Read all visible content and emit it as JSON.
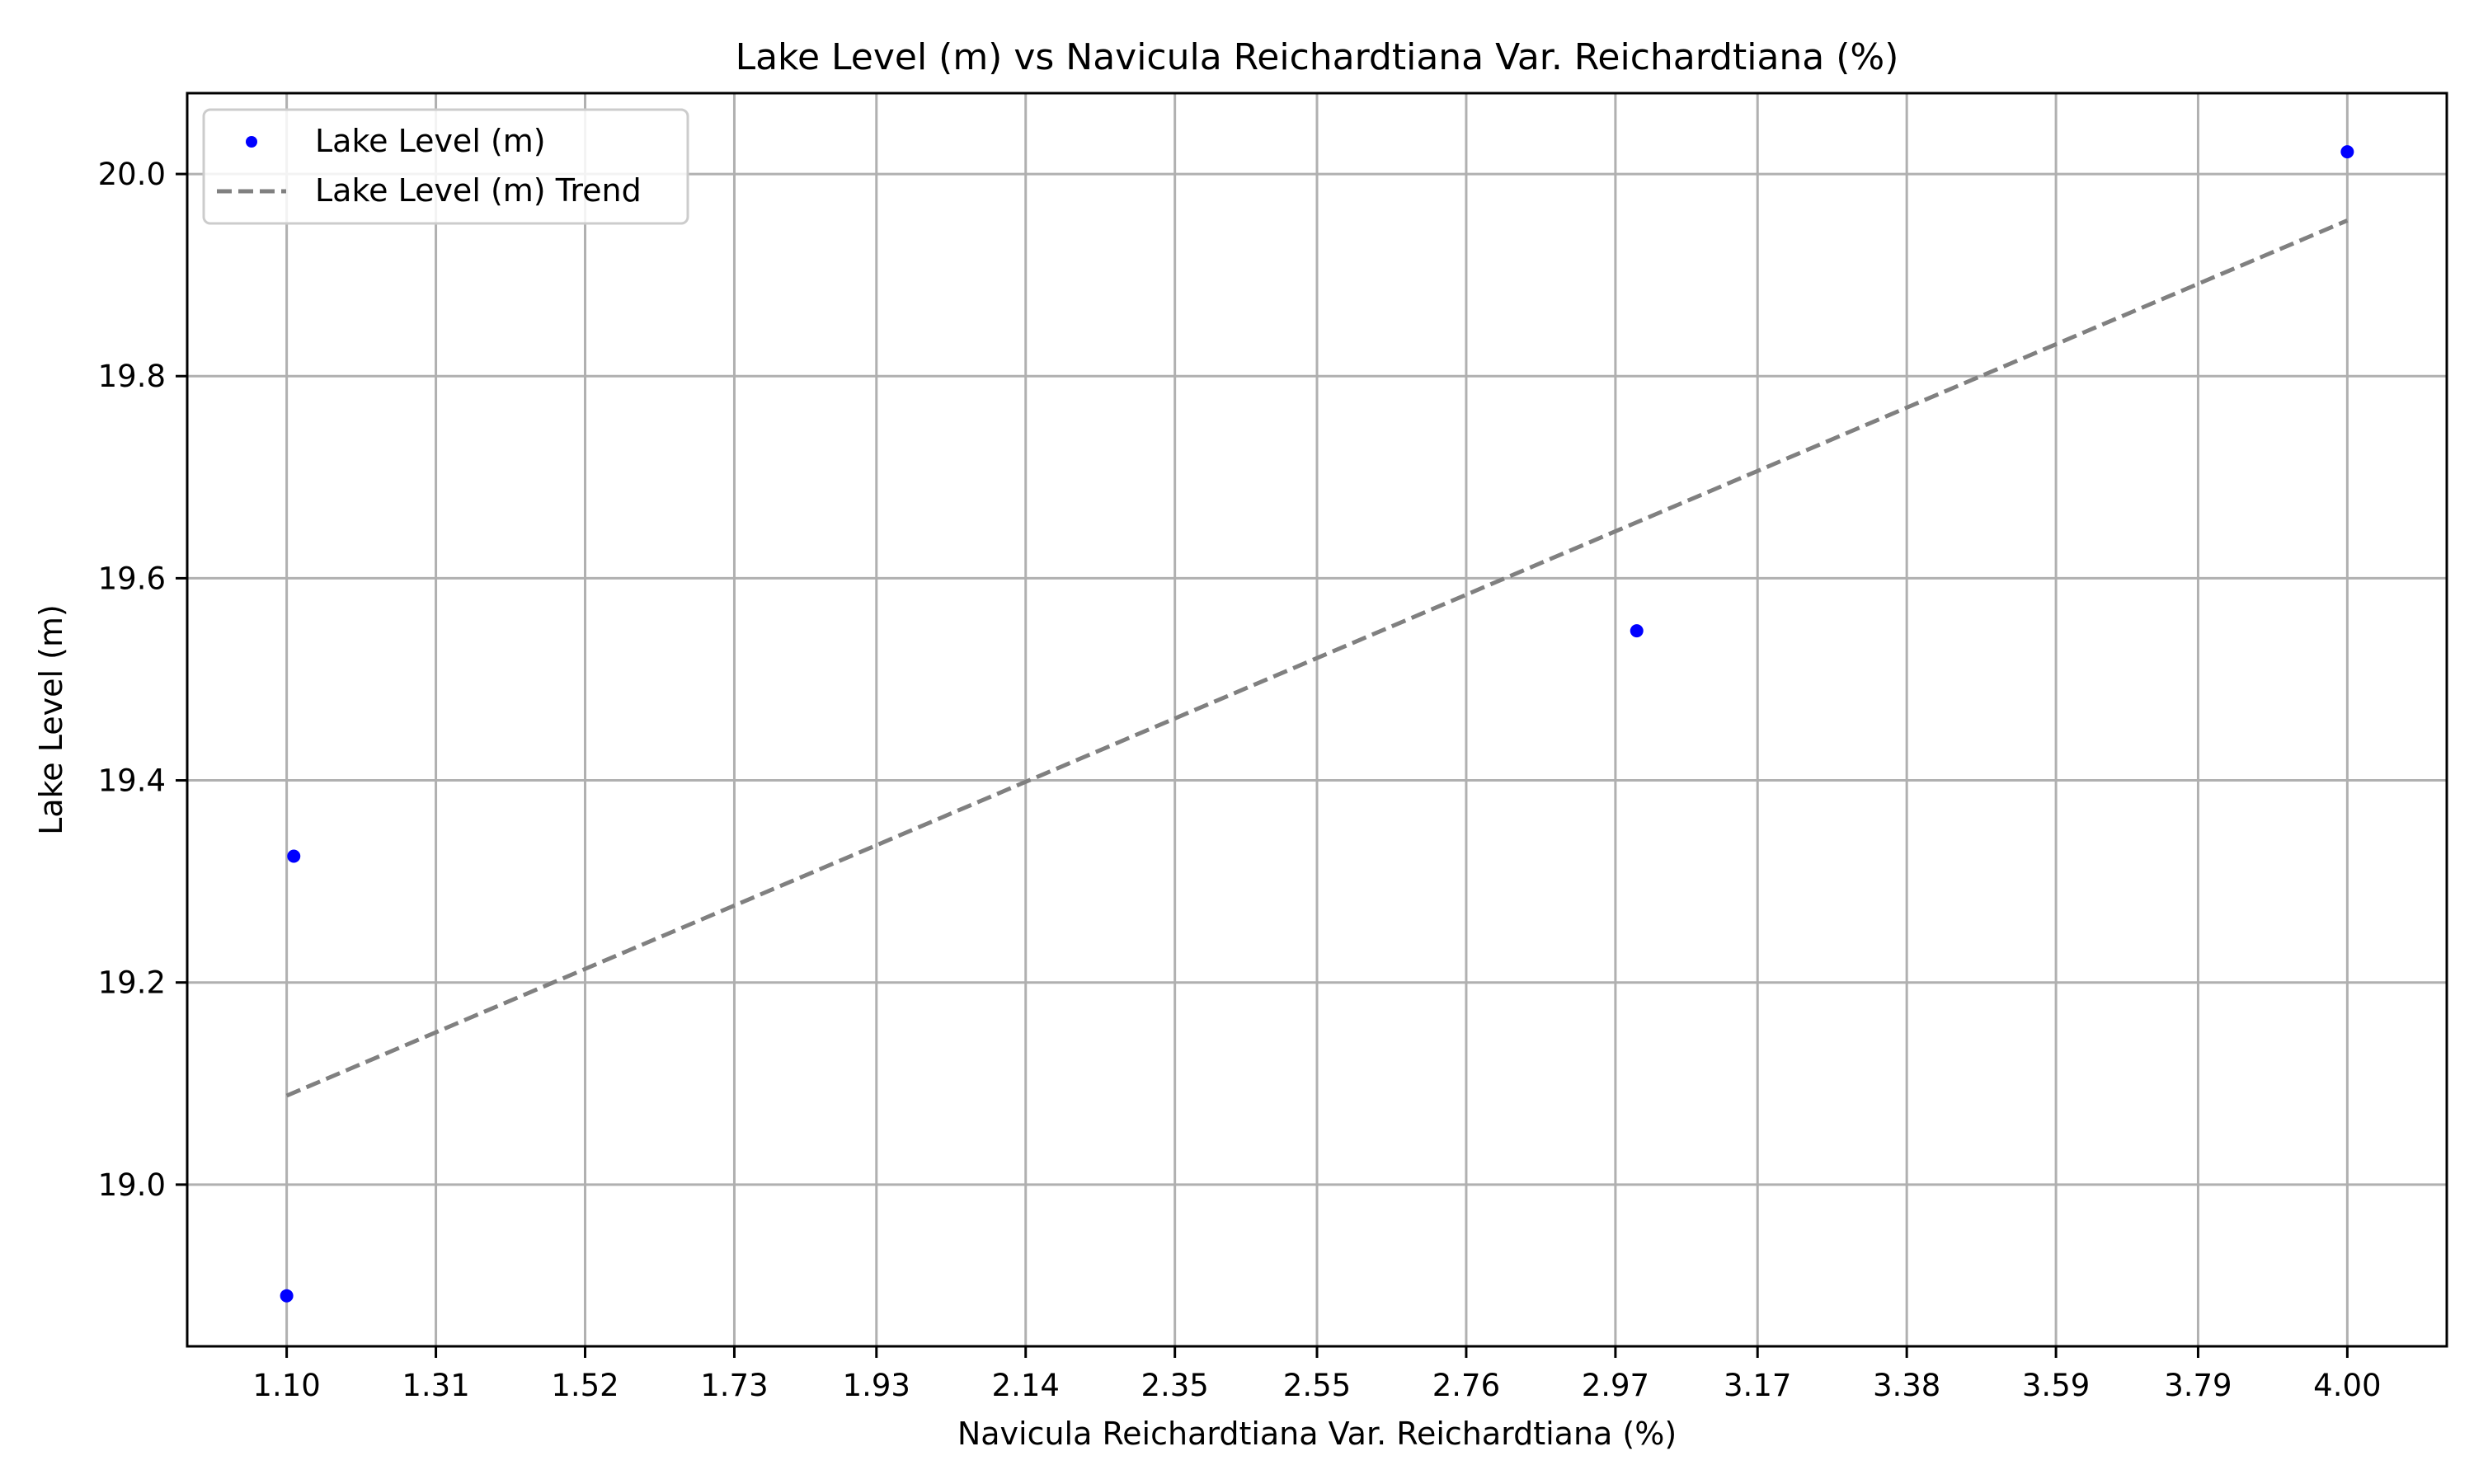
{
  "chart_data": {
    "type": "scatter",
    "title": "Lake Level (m) vs Navicula Reichardtiana Var. Reichardtiana (%)",
    "xlabel": "Navicula Reichardtiana Var. Reichardtiana (%)",
    "ylabel": "Lake Level (m)",
    "xlim": [
      0.96,
      4.14
    ],
    "ylim": [
      18.84,
      20.08
    ],
    "x_ticks": [
      "1.10",
      "1.31",
      "1.52",
      "1.73",
      "1.93",
      "2.14",
      "2.35",
      "2.55",
      "2.76",
      "2.97",
      "3.17",
      "3.38",
      "3.59",
      "3.79",
      "4.00"
    ],
    "y_ticks": [
      "19.0",
      "19.2",
      "19.4",
      "19.6",
      "19.8",
      "20.0"
    ],
    "grid": true,
    "legend_position": "top-left",
    "series": [
      {
        "name": "Lake Level (m)",
        "kind": "scatter",
        "color": "#0000ff",
        "points": [
          {
            "x": 1.1,
            "y": 18.89
          },
          {
            "x": 1.11,
            "y": 19.325
          },
          {
            "x": 3.0,
            "y": 19.548
          },
          {
            "x": 4.0,
            "y": 20.022
          }
        ]
      },
      {
        "name": "Lake Level (m) Trend",
        "kind": "line",
        "style": "dashed",
        "color": "#808080",
        "points": [
          {
            "x": 1.1,
            "y": 19.088
          },
          {
            "x": 4.0,
            "y": 19.954
          }
        ]
      }
    ]
  }
}
